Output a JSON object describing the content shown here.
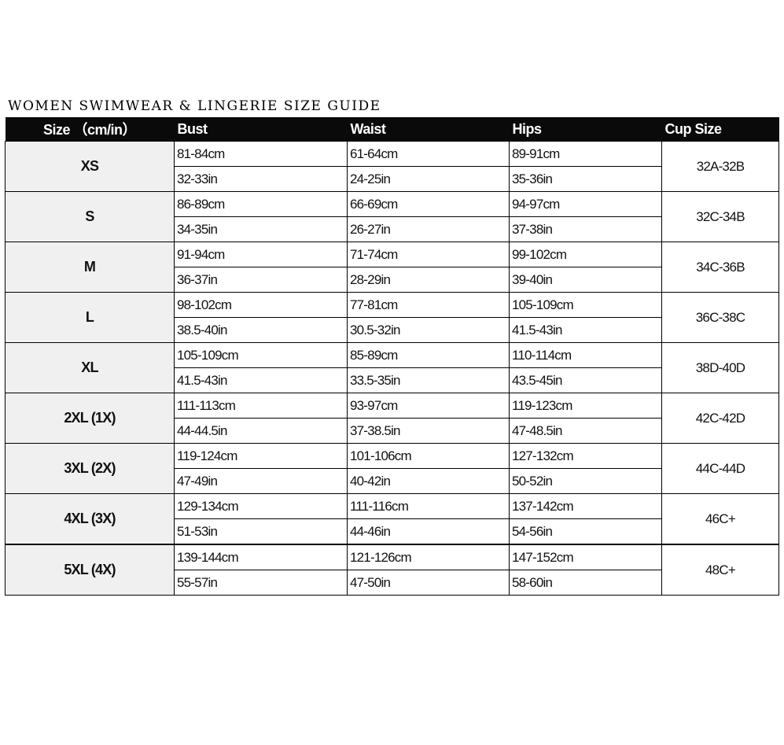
{
  "title": "WOMEN SWIMWEAR & LINGERIE SIZE GUIDE",
  "headers": [
    "Size （cm/in）",
    "Bust",
    "Waist",
    "Hips",
    "Cup Size"
  ],
  "rows": [
    {
      "size": "XS",
      "bust": [
        "81-84cm",
        "32-33in"
      ],
      "waist": [
        "61-64cm",
        "24-25in"
      ],
      "hips": [
        "89-91cm",
        "35-36in"
      ],
      "cup": "32A-32B"
    },
    {
      "size": "S",
      "bust": [
        "86-89cm",
        "34-35in"
      ],
      "waist": [
        "66-69cm",
        "26-27in"
      ],
      "hips": [
        "94-97cm",
        "37-38in"
      ],
      "cup": "32C-34B"
    },
    {
      "size": "M",
      "bust": [
        "91-94cm",
        "36-37in"
      ],
      "waist": [
        "71-74cm",
        "28-29in"
      ],
      "hips": [
        "99-102cm",
        "39-40in"
      ],
      "cup": "34C-36B"
    },
    {
      "size": "L",
      "bust": [
        "98-102cm",
        "38.5-40in"
      ],
      "waist": [
        "77-81cm",
        "30.5-32in"
      ],
      "hips": [
        "105-109cm",
        "41.5-43in"
      ],
      "cup": "36C-38C"
    },
    {
      "size": "XL",
      "bust": [
        "105-109cm",
        "41.5-43in"
      ],
      "waist": [
        "85-89cm",
        "33.5-35in"
      ],
      "hips": [
        "110-114cm",
        "43.5-45in"
      ],
      "cup": "38D-40D"
    },
    {
      "size": "2XL (1X)",
      "bust": [
        "111-113cm",
        "44-44.5in"
      ],
      "waist": [
        "93-97cm",
        "37-38.5in"
      ],
      "hips": [
        "119-123cm",
        "47-48.5in"
      ],
      "cup": "42C-42D"
    },
    {
      "size": "3XL (2X)",
      "bust": [
        "119-124cm",
        "47-49in"
      ],
      "waist": [
        "101-106cm",
        "40-42in"
      ],
      "hips": [
        "127-132cm",
        "50-52in"
      ],
      "cup": "44C-44D"
    },
    {
      "size": "4XL (3X)",
      "bust": [
        "129-134cm",
        "51-53in"
      ],
      "waist": [
        "111-116cm",
        "44-46in"
      ],
      "hips": [
        "137-142cm",
        "54-56in"
      ],
      "cup": "46C+"
    },
    {
      "size": "5XL (4X)",
      "bust": [
        "139-144cm",
        "55-57in"
      ],
      "waist": [
        "121-126cm",
        "47-50in"
      ],
      "hips": [
        "147-152cm",
        "58-60in"
      ],
      "cup": "48C+"
    }
  ]
}
